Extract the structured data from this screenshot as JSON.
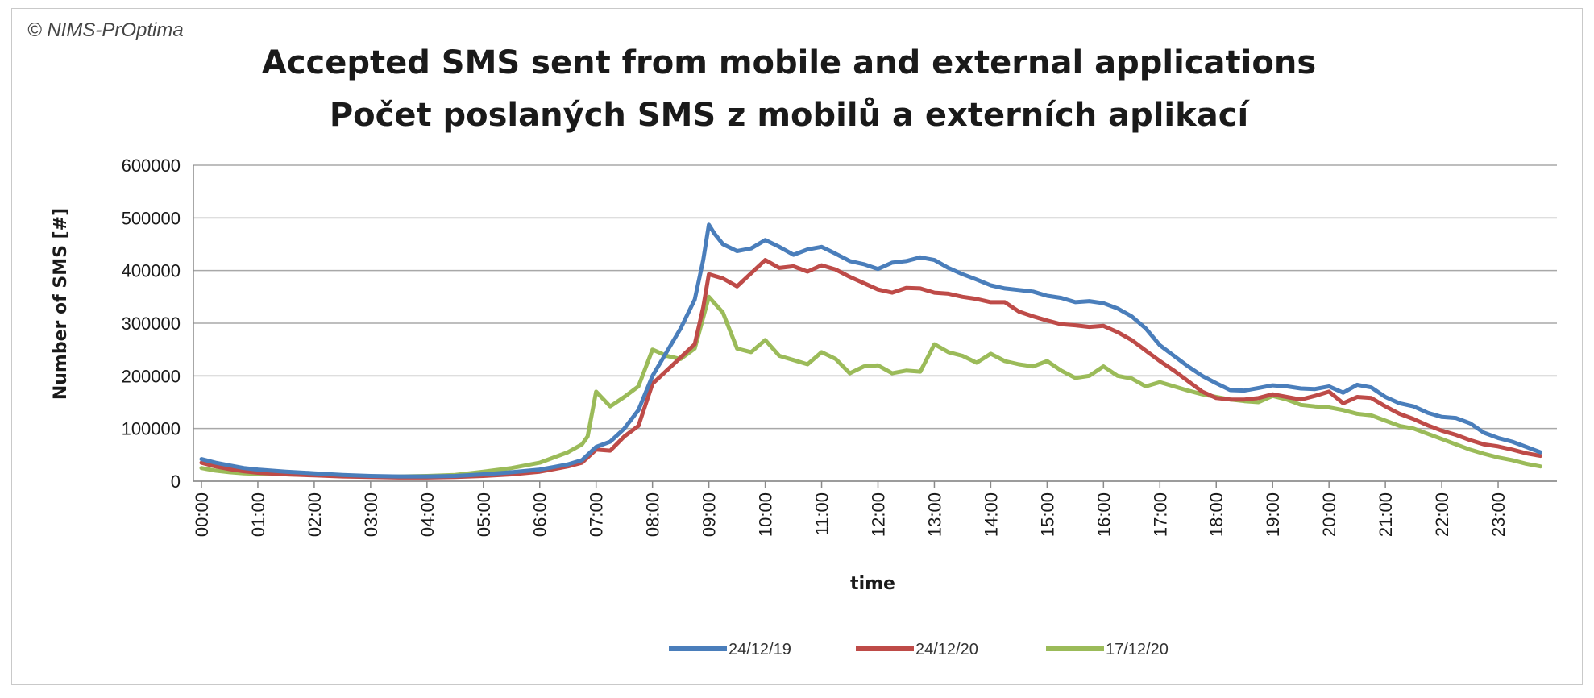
{
  "chart_data": {
    "type": "line",
    "copyright": "© NIMS-PrOptima",
    "title": "Accepted SMS sent from mobile and external applications",
    "subtitle": "Počet poslaných SMS z mobilů a externích aplikací",
    "xlabel": "time",
    "ylabel": "Number of SMS [#]",
    "ylim": [
      0,
      600000
    ],
    "yticks": [
      "0",
      "100000",
      "200000",
      "300000",
      "400000",
      "500000",
      "600000"
    ],
    "xticks": [
      "00:00",
      "01:00",
      "02:00",
      "03:00",
      "04:00",
      "05:00",
      "06:00",
      "07:00",
      "08:00",
      "09:00",
      "10:00",
      "11:00",
      "12:00",
      "13:00",
      "14:00",
      "15:00",
      "16:00",
      "17:00",
      "18:00",
      "19:00",
      "20:00",
      "21:00",
      "22:00",
      "23:00"
    ],
    "grid": true,
    "legend_position": "bottom",
    "series": [
      {
        "name": "24/12/19",
        "color": "#4a7ebb",
        "points": [
          [
            0,
            42000
          ],
          [
            0.25,
            35000
          ],
          [
            0.5,
            30000
          ],
          [
            0.75,
            25000
          ],
          [
            1,
            22000
          ],
          [
            1.5,
            18000
          ],
          [
            2,
            15000
          ],
          [
            2.5,
            12000
          ],
          [
            3,
            10000
          ],
          [
            3.5,
            9000
          ],
          [
            4,
            9000
          ],
          [
            4.5,
            10000
          ],
          [
            5,
            13000
          ],
          [
            5.5,
            17000
          ],
          [
            6,
            22000
          ],
          [
            6.25,
            27000
          ],
          [
            6.5,
            32000
          ],
          [
            6.75,
            40000
          ],
          [
            7,
            65000
          ],
          [
            7.25,
            75000
          ],
          [
            7.5,
            100000
          ],
          [
            7.75,
            135000
          ],
          [
            8,
            200000
          ],
          [
            8.25,
            245000
          ],
          [
            8.5,
            290000
          ],
          [
            8.75,
            345000
          ],
          [
            8.9,
            420000
          ],
          [
            9,
            487000
          ],
          [
            9.1,
            470000
          ],
          [
            9.25,
            450000
          ],
          [
            9.5,
            437000
          ],
          [
            9.75,
            442000
          ],
          [
            10,
            458000
          ],
          [
            10.25,
            445000
          ],
          [
            10.5,
            430000
          ],
          [
            10.75,
            440000
          ],
          [
            11,
            445000
          ],
          [
            11.25,
            432000
          ],
          [
            11.5,
            418000
          ],
          [
            11.75,
            412000
          ],
          [
            12,
            403000
          ],
          [
            12.25,
            415000
          ],
          [
            12.5,
            418000
          ],
          [
            12.75,
            425000
          ],
          [
            13,
            420000
          ],
          [
            13.25,
            405000
          ],
          [
            13.5,
            393000
          ],
          [
            13.75,
            383000
          ],
          [
            14,
            372000
          ],
          [
            14.25,
            366000
          ],
          [
            14.5,
            363000
          ],
          [
            14.75,
            360000
          ],
          [
            15,
            352000
          ],
          [
            15.25,
            348000
          ],
          [
            15.5,
            340000
          ],
          [
            15.75,
            342000
          ],
          [
            16,
            338000
          ],
          [
            16.25,
            328000
          ],
          [
            16.5,
            313000
          ],
          [
            16.75,
            290000
          ],
          [
            17,
            258000
          ],
          [
            17.25,
            238000
          ],
          [
            17.5,
            218000
          ],
          [
            17.75,
            200000
          ],
          [
            18,
            186000
          ],
          [
            18.25,
            173000
          ],
          [
            18.5,
            172000
          ],
          [
            18.75,
            177000
          ],
          [
            19,
            182000
          ],
          [
            19.25,
            180000
          ],
          [
            19.5,
            176000
          ],
          [
            19.75,
            175000
          ],
          [
            20,
            180000
          ],
          [
            20.25,
            168000
          ],
          [
            20.5,
            183000
          ],
          [
            20.75,
            178000
          ],
          [
            21,
            160000
          ],
          [
            21.25,
            148000
          ],
          [
            21.5,
            142000
          ],
          [
            21.75,
            130000
          ],
          [
            22,
            122000
          ],
          [
            22.25,
            120000
          ],
          [
            22.5,
            110000
          ],
          [
            22.75,
            92000
          ],
          [
            23,
            82000
          ],
          [
            23.25,
            75000
          ],
          [
            23.5,
            65000
          ],
          [
            23.75,
            55000
          ]
        ]
      },
      {
        "name": "24/12/20",
        "color": "#be4b48",
        "points": [
          [
            0,
            35000
          ],
          [
            0.25,
            28000
          ],
          [
            0.5,
            23000
          ],
          [
            0.75,
            19000
          ],
          [
            1,
            16000
          ],
          [
            1.5,
            13000
          ],
          [
            2,
            11000
          ],
          [
            2.5,
            9000
          ],
          [
            3,
            8000
          ],
          [
            3.5,
            7000
          ],
          [
            4,
            7000
          ],
          [
            4.5,
            8000
          ],
          [
            5,
            10000
          ],
          [
            5.5,
            13000
          ],
          [
            6,
            18000
          ],
          [
            6.25,
            23000
          ],
          [
            6.5,
            28000
          ],
          [
            6.75,
            35000
          ],
          [
            7,
            60000
          ],
          [
            7.25,
            58000
          ],
          [
            7.5,
            85000
          ],
          [
            7.75,
            105000
          ],
          [
            8,
            185000
          ],
          [
            8.25,
            210000
          ],
          [
            8.5,
            235000
          ],
          [
            8.75,
            260000
          ],
          [
            8.9,
            330000
          ],
          [
            9,
            393000
          ],
          [
            9.25,
            385000
          ],
          [
            9.5,
            370000
          ],
          [
            9.75,
            395000
          ],
          [
            10,
            420000
          ],
          [
            10.25,
            405000
          ],
          [
            10.5,
            408000
          ],
          [
            10.75,
            398000
          ],
          [
            11,
            410000
          ],
          [
            11.25,
            402000
          ],
          [
            11.5,
            388000
          ],
          [
            11.75,
            376000
          ],
          [
            12,
            364000
          ],
          [
            12.25,
            358000
          ],
          [
            12.5,
            367000
          ],
          [
            12.75,
            366000
          ],
          [
            13,
            358000
          ],
          [
            13.25,
            356000
          ],
          [
            13.5,
            350000
          ],
          [
            13.75,
            346000
          ],
          [
            14,
            340000
          ],
          [
            14.25,
            340000
          ],
          [
            14.5,
            322000
          ],
          [
            14.75,
            313000
          ],
          [
            15,
            305000
          ],
          [
            15.25,
            298000
          ],
          [
            15.5,
            296000
          ],
          [
            15.75,
            293000
          ],
          [
            16,
            295000
          ],
          [
            16.25,
            283000
          ],
          [
            16.5,
            268000
          ],
          [
            16.75,
            248000
          ],
          [
            17,
            228000
          ],
          [
            17.25,
            210000
          ],
          [
            17.5,
            190000
          ],
          [
            17.75,
            170000
          ],
          [
            18,
            158000
          ],
          [
            18.25,
            155000
          ],
          [
            18.5,
            155000
          ],
          [
            18.75,
            158000
          ],
          [
            19,
            165000
          ],
          [
            19.25,
            160000
          ],
          [
            19.5,
            155000
          ],
          [
            19.75,
            162000
          ],
          [
            20,
            170000
          ],
          [
            20.25,
            148000
          ],
          [
            20.5,
            160000
          ],
          [
            20.75,
            158000
          ],
          [
            21,
            142000
          ],
          [
            21.25,
            128000
          ],
          [
            21.5,
            118000
          ],
          [
            21.75,
            106000
          ],
          [
            22,
            96000
          ],
          [
            22.25,
            88000
          ],
          [
            22.5,
            78000
          ],
          [
            22.75,
            70000
          ],
          [
            23,
            66000
          ],
          [
            23.25,
            60000
          ],
          [
            23.5,
            53000
          ],
          [
            23.75,
            48000
          ]
        ]
      },
      {
        "name": "17/12/20",
        "color": "#9bbb59",
        "points": [
          [
            0,
            25000
          ],
          [
            0.25,
            20000
          ],
          [
            0.5,
            17000
          ],
          [
            0.75,
            15000
          ],
          [
            1,
            14000
          ],
          [
            1.5,
            13000
          ],
          [
            2,
            12000
          ],
          [
            2.5,
            10000
          ],
          [
            3,
            9000
          ],
          [
            3.5,
            9000
          ],
          [
            4,
            10000
          ],
          [
            4.5,
            12000
          ],
          [
            5,
            18000
          ],
          [
            5.5,
            25000
          ],
          [
            6,
            35000
          ],
          [
            6.25,
            45000
          ],
          [
            6.5,
            55000
          ],
          [
            6.75,
            70000
          ],
          [
            6.85,
            85000
          ],
          [
            7,
            170000
          ],
          [
            7.25,
            142000
          ],
          [
            7.5,
            160000
          ],
          [
            7.75,
            180000
          ],
          [
            8,
            250000
          ],
          [
            8.25,
            238000
          ],
          [
            8.5,
            232000
          ],
          [
            8.75,
            252000
          ],
          [
            9,
            350000
          ],
          [
            9.25,
            320000
          ],
          [
            9.5,
            252000
          ],
          [
            9.75,
            245000
          ],
          [
            10,
            268000
          ],
          [
            10.25,
            238000
          ],
          [
            10.5,
            230000
          ],
          [
            10.75,
            222000
          ],
          [
            11,
            245000
          ],
          [
            11.25,
            232000
          ],
          [
            11.5,
            205000
          ],
          [
            11.75,
            218000
          ],
          [
            12,
            220000
          ],
          [
            12.25,
            205000
          ],
          [
            12.5,
            210000
          ],
          [
            12.75,
            208000
          ],
          [
            13,
            260000
          ],
          [
            13.25,
            245000
          ],
          [
            13.5,
            238000
          ],
          [
            13.75,
            225000
          ],
          [
            14,
            242000
          ],
          [
            14.25,
            228000
          ],
          [
            14.5,
            222000
          ],
          [
            14.75,
            218000
          ],
          [
            15,
            228000
          ],
          [
            15.25,
            210000
          ],
          [
            15.5,
            196000
          ],
          [
            15.75,
            200000
          ],
          [
            16,
            218000
          ],
          [
            16.25,
            200000
          ],
          [
            16.5,
            195000
          ],
          [
            16.75,
            180000
          ],
          [
            17,
            188000
          ],
          [
            17.25,
            180000
          ],
          [
            17.5,
            172000
          ],
          [
            17.75,
            165000
          ],
          [
            18,
            160000
          ],
          [
            18.25,
            155000
          ],
          [
            18.5,
            152000
          ],
          [
            18.75,
            150000
          ],
          [
            19,
            162000
          ],
          [
            19.25,
            155000
          ],
          [
            19.5,
            145000
          ],
          [
            19.75,
            142000
          ],
          [
            20,
            140000
          ],
          [
            20.25,
            135000
          ],
          [
            20.5,
            128000
          ],
          [
            20.75,
            125000
          ],
          [
            21,
            115000
          ],
          [
            21.25,
            105000
          ],
          [
            21.5,
            100000
          ],
          [
            21.75,
            90000
          ],
          [
            22,
            80000
          ],
          [
            22.25,
            70000
          ],
          [
            22.5,
            60000
          ],
          [
            22.75,
            52000
          ],
          [
            23,
            45000
          ],
          [
            23.25,
            40000
          ],
          [
            23.5,
            33000
          ],
          [
            23.75,
            28000
          ]
        ]
      }
    ]
  }
}
